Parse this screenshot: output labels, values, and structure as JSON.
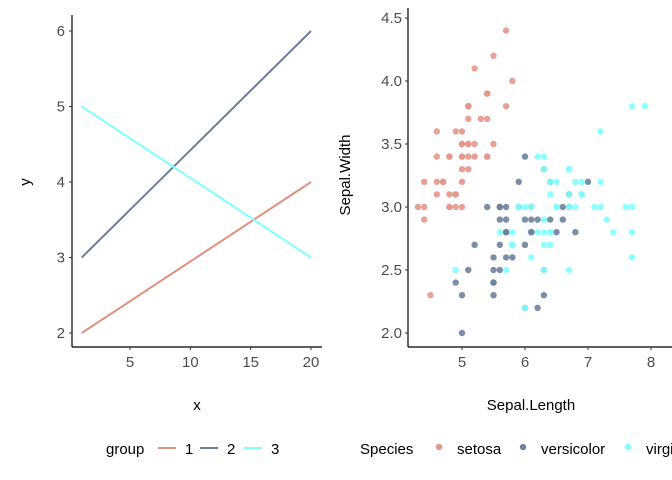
{
  "chart_data": [
    {
      "type": "line",
      "xlabel": "x",
      "ylabel": "y",
      "xticks": [
        5,
        10,
        15,
        20
      ],
      "yticks": [
        2,
        3,
        4,
        5,
        6
      ],
      "xlim": [
        0.05,
        20.95
      ],
      "ylim": [
        1.85,
        6.15
      ],
      "grid": false,
      "legend": {
        "title": "group",
        "placement": "bottom"
      },
      "series": [
        {
          "name": "1",
          "color": "#E0907E",
          "x": [
            1,
            20
          ],
          "y": [
            2,
            4
          ]
        },
        {
          "name": "2",
          "color": "#6A7F9A",
          "x": [
            1,
            20
          ],
          "y": [
            3,
            6
          ]
        },
        {
          "name": "3",
          "color": "#7FFFFF",
          "x": [
            1,
            20
          ],
          "y": [
            5,
            3
          ]
        }
      ]
    },
    {
      "type": "scatter",
      "xlabel": "Sepal.Length",
      "ylabel": "Sepal.Width",
      "xticks": [
        5,
        6,
        7,
        8
      ],
      "yticks": [
        "2.0",
        "2.5",
        "3.0",
        "3.5",
        "4.0",
        "4.5"
      ],
      "grid": false,
      "legend": {
        "title": "Species",
        "placement": "bottom"
      },
      "series": [
        {
          "name": "setosa",
          "color": "#E3968A",
          "points": [
            [
              5.1,
              3.5
            ],
            [
              4.9,
              3.0
            ],
            [
              4.7,
              3.2
            ],
            [
              4.6,
              3.1
            ],
            [
              5.0,
              3.6
            ],
            [
              5.4,
              3.9
            ],
            [
              4.6,
              3.4
            ],
            [
              5.0,
              3.4
            ],
            [
              4.4,
              2.9
            ],
            [
              4.9,
              3.1
            ],
            [
              5.4,
              3.7
            ],
            [
              4.8,
              3.4
            ],
            [
              4.8,
              3.0
            ],
            [
              4.3,
              3.0
            ],
            [
              5.8,
              4.0
            ],
            [
              5.7,
              4.4
            ],
            [
              5.4,
              3.9
            ],
            [
              5.1,
              3.5
            ],
            [
              5.7,
              3.8
            ],
            [
              5.1,
              3.8
            ],
            [
              5.4,
              3.4
            ],
            [
              5.1,
              3.7
            ],
            [
              4.6,
              3.6
            ],
            [
              5.1,
              3.3
            ],
            [
              4.8,
              3.4
            ],
            [
              5.0,
              3.0
            ],
            [
              5.0,
              3.4
            ],
            [
              5.2,
              3.5
            ],
            [
              5.2,
              3.4
            ],
            [
              4.7,
              3.2
            ],
            [
              4.8,
              3.1
            ],
            [
              5.4,
              3.4
            ],
            [
              5.2,
              4.1
            ],
            [
              5.5,
              4.2
            ],
            [
              4.9,
              3.1
            ],
            [
              5.0,
              3.2
            ],
            [
              5.5,
              3.5
            ],
            [
              4.9,
              3.6
            ],
            [
              4.4,
              3.0
            ],
            [
              5.1,
              3.4
            ],
            [
              5.0,
              3.5
            ],
            [
              4.5,
              2.3
            ],
            [
              4.4,
              3.2
            ],
            [
              5.0,
              3.5
            ],
            [
              5.1,
              3.8
            ],
            [
              4.8,
              3.0
            ],
            [
              5.1,
              3.8
            ],
            [
              4.6,
              3.2
            ],
            [
              5.3,
              3.7
            ],
            [
              5.0,
              3.3
            ]
          ]
        },
        {
          "name": "versicolor",
          "color": "#6E819C",
          "points": [
            [
              7.0,
              3.2
            ],
            [
              6.4,
              3.2
            ],
            [
              6.9,
              3.1
            ],
            [
              5.5,
              2.3
            ],
            [
              6.5,
              2.8
            ],
            [
              5.7,
              2.8
            ],
            [
              6.3,
              3.3
            ],
            [
              4.9,
              2.4
            ],
            [
              6.6,
              2.9
            ],
            [
              5.2,
              2.7
            ],
            [
              5.0,
              2.0
            ],
            [
              5.9,
              3.0
            ],
            [
              6.0,
              2.2
            ],
            [
              6.1,
              2.9
            ],
            [
              5.6,
              2.9
            ],
            [
              6.7,
              3.1
            ],
            [
              5.6,
              3.0
            ],
            [
              5.8,
              2.7
            ],
            [
              6.2,
              2.2
            ],
            [
              5.6,
              2.5
            ],
            [
              5.9,
              3.2
            ],
            [
              6.1,
              2.8
            ],
            [
              6.3,
              2.5
            ],
            [
              6.1,
              2.8
            ],
            [
              6.4,
              2.9
            ],
            [
              6.6,
              3.0
            ],
            [
              6.8,
              2.8
            ],
            [
              6.7,
              3.0
            ],
            [
              6.0,
              2.9
            ],
            [
              5.7,
              2.6
            ],
            [
              5.5,
              2.4
            ],
            [
              5.5,
              2.4
            ],
            [
              5.8,
              2.7
            ],
            [
              6.0,
              2.7
            ],
            [
              5.4,
              3.0
            ],
            [
              6.0,
              3.4
            ],
            [
              6.7,
              3.1
            ],
            [
              6.3,
              2.3
            ],
            [
              5.6,
              3.0
            ],
            [
              5.5,
              2.5
            ],
            [
              5.5,
              2.6
            ],
            [
              6.1,
              3.0
            ],
            [
              5.8,
              2.6
            ],
            [
              5.0,
              2.3
            ],
            [
              5.6,
              2.7
            ],
            [
              5.7,
              3.0
            ],
            [
              5.7,
              2.9
            ],
            [
              6.2,
              2.9
            ],
            [
              5.1,
              2.5
            ],
            [
              5.7,
              2.8
            ]
          ]
        },
        {
          "name": "virginica",
          "color": "#80FFFF",
          "points": [
            [
              6.3,
              3.3
            ],
            [
              5.8,
              2.7
            ],
            [
              7.1,
              3.0
            ],
            [
              6.3,
              2.9
            ],
            [
              6.5,
              3.0
            ],
            [
              7.6,
              3.0
            ],
            [
              4.9,
              2.5
            ],
            [
              7.3,
              2.9
            ],
            [
              6.7,
              2.5
            ],
            [
              7.2,
              3.6
            ],
            [
              6.5,
              3.2
            ],
            [
              6.4,
              2.7
            ],
            [
              6.8,
              3.0
            ],
            [
              5.7,
              2.5
            ],
            [
              5.8,
              2.8
            ],
            [
              6.4,
              3.2
            ],
            [
              6.5,
              3.0
            ],
            [
              7.7,
              3.8
            ],
            [
              7.7,
              2.6
            ],
            [
              6.0,
              2.2
            ],
            [
              6.9,
              3.2
            ],
            [
              5.6,
              2.8
            ],
            [
              7.7,
              2.8
            ],
            [
              6.3,
              2.7
            ],
            [
              6.7,
              3.3
            ],
            [
              7.2,
              3.2
            ],
            [
              6.2,
              2.8
            ],
            [
              6.1,
              3.0
            ],
            [
              6.4,
              2.8
            ],
            [
              7.2,
              3.0
            ],
            [
              7.4,
              2.8
            ],
            [
              7.9,
              3.8
            ],
            [
              6.4,
              2.8
            ],
            [
              6.3,
              2.8
            ],
            [
              6.1,
              2.6
            ],
            [
              7.7,
              3.0
            ],
            [
              6.3,
              3.4
            ],
            [
              6.4,
              3.1
            ],
            [
              6.0,
              3.0
            ],
            [
              6.9,
              3.1
            ],
            [
              6.7,
              3.1
            ],
            [
              6.9,
              3.1
            ],
            [
              5.8,
              2.7
            ],
            [
              6.8,
              3.2
            ],
            [
              6.7,
              3.3
            ],
            [
              6.7,
              3.0
            ],
            [
              6.3,
              2.5
            ],
            [
              6.5,
              3.0
            ],
            [
              6.2,
              3.4
            ],
            [
              5.9,
              3.0
            ]
          ]
        }
      ]
    }
  ]
}
